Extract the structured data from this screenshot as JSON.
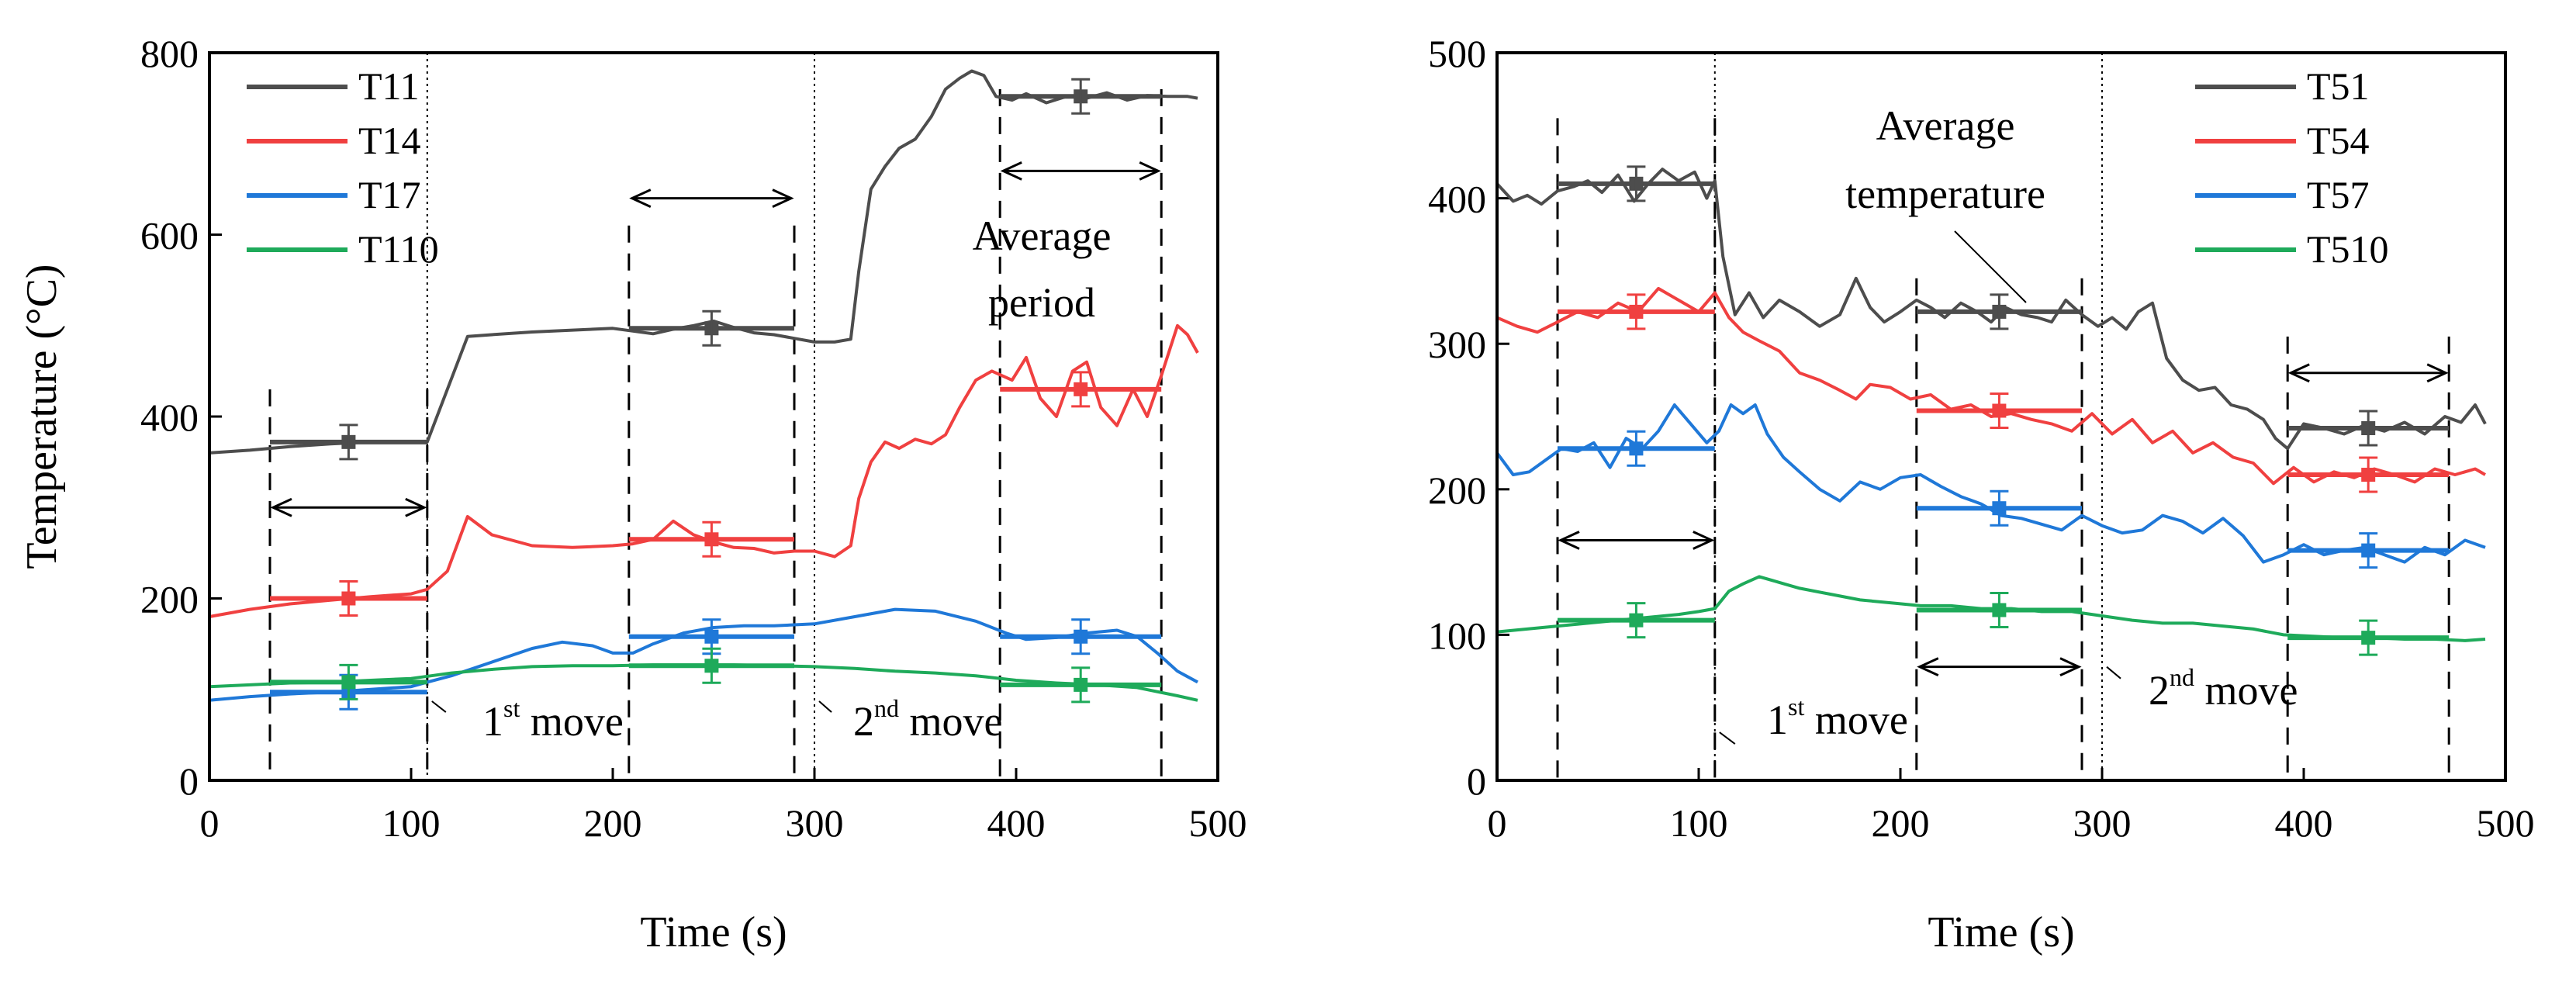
{
  "chart_data": [
    {
      "type": "line",
      "xlabel": "Time (s)",
      "ylabel": "Temperature (°C)",
      "xlim": [
        0,
        500
      ],
      "ylim": [
        0,
        800
      ],
      "xticks": [
        "0",
        "100",
        "200",
        "300",
        "400",
        "500"
      ],
      "yticks": [
        "0",
        "200",
        "400",
        "600",
        "800"
      ],
      "series": [
        {
          "name": "T11",
          "color": "#4d4d4d",
          "x": [
            0,
            20,
            40,
            60,
            80,
            100,
            108,
            118,
            128,
            140,
            160,
            180,
            200,
            210,
            220,
            230,
            240,
            250,
            260,
            270,
            280,
            290,
            300,
            310,
            318,
            322,
            328,
            335,
            342,
            350,
            358,
            365,
            372,
            378,
            384,
            390,
            398,
            405,
            415,
            425,
            435,
            445,
            455,
            465,
            475,
            485,
            490
          ],
          "y": [
            360,
            363,
            367,
            370,
            372,
            372,
            372,
            430,
            488,
            490,
            493,
            495,
            497,
            494,
            491,
            496,
            500,
            505,
            498,
            492,
            490,
            486,
            482,
            482,
            485,
            560,
            650,
            675,
            695,
            705,
            730,
            760,
            772,
            780,
            775,
            752,
            748,
            755,
            745,
            752,
            750,
            756,
            748,
            753,
            752,
            752,
            750
          ],
          "avg_periods": [
            {
              "x": [
                30,
                108
              ],
              "y": 372
            },
            {
              "x": [
                208,
                290
              ],
              "y": 497
            },
            {
              "x": [
                392,
                472
              ],
              "y": 752
            }
          ]
        },
        {
          "name": "T14",
          "color": "#f04040",
          "x": [
            0,
            20,
            40,
            60,
            80,
            100,
            108,
            118,
            128,
            140,
            160,
            180,
            200,
            210,
            220,
            230,
            240,
            250,
            260,
            270,
            280,
            290,
            300,
            310,
            318,
            322,
            328,
            335,
            342,
            350,
            358,
            365,
            372,
            380,
            388,
            398,
            405,
            412,
            420,
            428,
            435,
            442,
            450,
            458,
            465,
            472,
            480,
            485,
            490
          ],
          "y": [
            180,
            188,
            194,
            198,
            202,
            205,
            210,
            230,
            290,
            270,
            258,
            256,
            258,
            260,
            265,
            285,
            270,
            262,
            256,
            255,
            250,
            252,
            252,
            246,
            258,
            310,
            350,
            372,
            365,
            375,
            370,
            380,
            410,
            440,
            450,
            440,
            465,
            420,
            400,
            450,
            460,
            410,
            390,
            430,
            400,
            445,
            500,
            490,
            470
          ],
          "avg_periods": [
            {
              "x": [
                30,
                108
              ],
              "y": 200
            },
            {
              "x": [
                208,
                290
              ],
              "y": 265
            },
            {
              "x": [
                392,
                472
              ],
              "y": 430
            }
          ]
        },
        {
          "name": "T17",
          "color": "#1f78d8",
          "x": [
            0,
            20,
            40,
            60,
            80,
            100,
            108,
            120,
            140,
            160,
            175,
            190,
            200,
            210,
            220,
            235,
            250,
            265,
            280,
            300,
            320,
            340,
            360,
            380,
            395,
            405,
            420,
            435,
            450,
            460,
            470,
            480,
            490
          ],
          "y": [
            88,
            92,
            95,
            97,
            100,
            103,
            108,
            115,
            130,
            145,
            152,
            148,
            140,
            140,
            150,
            162,
            168,
            170,
            170,
            172,
            180,
            188,
            186,
            175,
            162,
            155,
            157,
            162,
            165,
            158,
            140,
            120,
            108
          ],
          "avg_periods": [
            {
              "x": [
                30,
                108
              ],
              "y": 97
            },
            {
              "x": [
                208,
                290
              ],
              "y": 158
            },
            {
              "x": [
                392,
                472
              ],
              "y": 158
            }
          ]
        },
        {
          "name": "T110",
          "color": "#1eaa5a",
          "x": [
            0,
            20,
            40,
            60,
            80,
            100,
            110,
            120,
            140,
            160,
            180,
            200,
            220,
            240,
            260,
            280,
            300,
            320,
            340,
            360,
            380,
            400,
            420,
            440,
            460,
            480,
            490
          ],
          "y": [
            103,
            105,
            107,
            108,
            110,
            112,
            115,
            118,
            122,
            125,
            126,
            126,
            127,
            127,
            127,
            126,
            125,
            123,
            120,
            118,
            115,
            110,
            107,
            105,
            102,
            93,
            88
          ],
          "avg_periods": [
            {
              "x": [
                30,
                108
              ],
              "y": 108
            },
            {
              "x": [
                208,
                290
              ],
              "y": 126
            },
            {
              "x": [
                392,
                472
              ],
              "y": 105
            }
          ]
        }
      ],
      "annotations": {
        "period_label_1": "Average",
        "period_label_2": "period",
        "move1_prefix": "1",
        "move1_sup": "st",
        "move1_suffix": " move",
        "move2_prefix": "2",
        "move2_sup": "nd",
        "move2_suffix": " move"
      }
    },
    {
      "type": "line",
      "xlabel": "Time (s)",
      "ylabel": "",
      "xlim": [
        0,
        500
      ],
      "ylim": [
        0,
        500
      ],
      "xticks": [
        "0",
        "100",
        "200",
        "300",
        "400",
        "500"
      ],
      "yticks": [
        "0",
        "100",
        "200",
        "300",
        "400",
        "500"
      ],
      "series": [
        {
          "name": "T51",
          "color": "#4d4d4d",
          "x": [
            0,
            8,
            15,
            22,
            30,
            38,
            45,
            52,
            60,
            68,
            75,
            82,
            90,
            98,
            104,
            108,
            112,
            118,
            125,
            132,
            140,
            150,
            160,
            170,
            178,
            185,
            192,
            200,
            208,
            215,
            222,
            230,
            238,
            245,
            252,
            260,
            268,
            275,
            282,
            290,
            298,
            305,
            312,
            318,
            325,
            332,
            340,
            348,
            356,
            364,
            372,
            380,
            386,
            392,
            400,
            410,
            420,
            430,
            440,
            450,
            460,
            470,
            478,
            485,
            490
          ],
          "y": [
            410,
            398,
            402,
            396,
            405,
            408,
            412,
            404,
            416,
            398,
            410,
            420,
            412,
            418,
            400,
            412,
            360,
            320,
            335,
            318,
            330,
            322,
            312,
            320,
            345,
            325,
            315,
            322,
            330,
            325,
            318,
            328,
            322,
            315,
            325,
            320,
            318,
            315,
            330,
            320,
            312,
            318,
            310,
            322,
            328,
            290,
            275,
            268,
            270,
            258,
            255,
            248,
            235,
            228,
            245,
            242,
            238,
            244,
            240,
            246,
            238,
            250,
            246,
            258,
            245
          ],
          "avg_periods": [
            {
              "x": [
                30,
                108
              ],
              "y": 410
            },
            {
              "x": [
                208,
                290
              ],
              "y": 322
            },
            {
              "x": [
                392,
                472
              ],
              "y": 242
            }
          ]
        },
        {
          "name": "T54",
          "color": "#f04040",
          "x": [
            0,
            10,
            20,
            30,
            40,
            50,
            60,
            70,
            80,
            90,
            100,
            108,
            115,
            122,
            130,
            140,
            150,
            160,
            170,
            178,
            185,
            195,
            205,
            215,
            225,
            235,
            245,
            255,
            265,
            275,
            285,
            295,
            305,
            315,
            325,
            335,
            345,
            355,
            365,
            375,
            385,
            395,
            405,
            415,
            425,
            435,
            445,
            455,
            465,
            475,
            485,
            490
          ],
          "y": [
            318,
            312,
            308,
            315,
            322,
            318,
            328,
            322,
            338,
            330,
            322,
            335,
            318,
            308,
            302,
            295,
            280,
            275,
            268,
            262,
            272,
            270,
            262,
            265,
            255,
            258,
            250,
            252,
            248,
            245,
            240,
            252,
            238,
            248,
            232,
            240,
            225,
            232,
            222,
            218,
            204,
            215,
            205,
            212,
            208,
            214,
            210,
            205,
            214,
            210,
            214,
            210
          ],
          "avg_periods": [
            {
              "x": [
                30,
                108
              ],
              "y": 322
            },
            {
              "x": [
                208,
                290
              ],
              "y": 254
            },
            {
              "x": [
                392,
                472
              ],
              "y": 210
            }
          ]
        },
        {
          "name": "T57",
          "color": "#1f78d8",
          "x": [
            0,
            8,
            16,
            24,
            32,
            40,
            48,
            56,
            64,
            72,
            80,
            88,
            96,
            104,
            110,
            116,
            122,
            128,
            134,
            142,
            150,
            160,
            170,
            180,
            190,
            200,
            210,
            220,
            230,
            240,
            250,
            260,
            270,
            280,
            290,
            300,
            310,
            320,
            330,
            340,
            350,
            360,
            370,
            380,
            390,
            400,
            410,
            420,
            430,
            440,
            450,
            460,
            470,
            480,
            490
          ],
          "y": [
            225,
            210,
            212,
            220,
            228,
            226,
            232,
            215,
            235,
            228,
            240,
            258,
            245,
            232,
            240,
            258,
            252,
            258,
            238,
            222,
            212,
            200,
            192,
            205,
            200,
            208,
            210,
            202,
            195,
            190,
            182,
            180,
            176,
            172,
            182,
            175,
            170,
            172,
            182,
            178,
            170,
            180,
            168,
            150,
            155,
            162,
            155,
            158,
            160,
            155,
            150,
            160,
            155,
            165,
            160
          ],
          "avg_periods": [
            {
              "x": [
                30,
                108
              ],
              "y": 228
            },
            {
              "x": [
                208,
                290
              ],
              "y": 187
            },
            {
              "x": [
                392,
                472
              ],
              "y": 158
            }
          ]
        },
        {
          "name": "T510",
          "color": "#1eaa5a",
          "x": [
            0,
            15,
            30,
            45,
            60,
            75,
            90,
            100,
            108,
            115,
            122,
            130,
            140,
            150,
            165,
            180,
            195,
            210,
            225,
            240,
            255,
            270,
            285,
            300,
            315,
            330,
            345,
            360,
            375,
            390,
            405,
            420,
            435,
            450,
            465,
            480,
            490
          ],
          "y": [
            102,
            104,
            106,
            108,
            110,
            112,
            114,
            116,
            118,
            130,
            135,
            140,
            136,
            132,
            128,
            124,
            122,
            120,
            120,
            118,
            118,
            116,
            116,
            113,
            110,
            108,
            108,
            106,
            104,
            100,
            99,
            98,
            98,
            97,
            97,
            96,
            97
          ],
          "avg_periods": [
            {
              "x": [
                30,
                108
              ],
              "y": 110
            },
            {
              "x": [
                208,
                290
              ],
              "y": 117
            },
            {
              "x": [
                392,
                472
              ],
              "y": 98
            }
          ]
        }
      ],
      "annotations": {
        "period_label_1": "Average",
        "period_label_2": "temperature",
        "move1_prefix": "1",
        "move1_sup": "st",
        "move1_suffix": " move",
        "move2_prefix": "2",
        "move2_sup": "nd",
        "move2_suffix": " move"
      }
    }
  ]
}
